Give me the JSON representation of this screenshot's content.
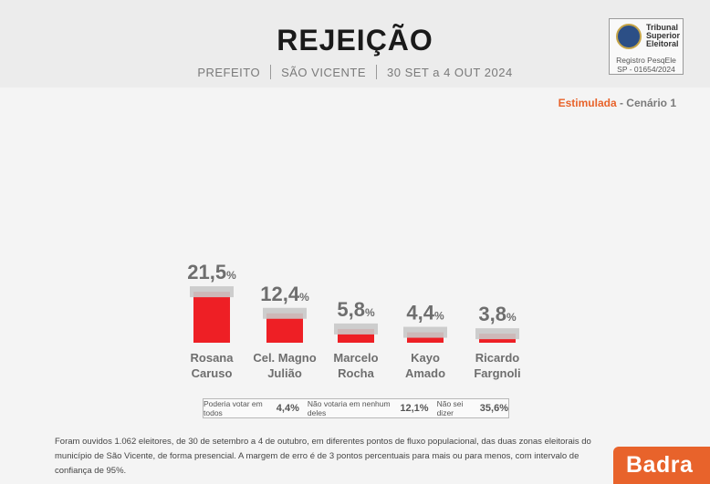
{
  "header": {
    "title": "REJEIÇÃO",
    "office": "PREFEITO",
    "city": "SÃO VICENTE",
    "period": "30 SET a 4 OUT 2024"
  },
  "registration": {
    "tribunal_line1": "Tribunal",
    "tribunal_line2": "Superior",
    "tribunal_line3": "Eleitoral",
    "reg_line1": "Registro PesqEle",
    "reg_line2": "SP - 01654/2024"
  },
  "scenario": {
    "type": "Estimulada",
    "rest": " - Cenário 1"
  },
  "chart_data": {
    "type": "bar",
    "categories": [
      [
        "Rosana",
        "Caruso"
      ],
      [
        "Cel. Magno",
        "Julião"
      ],
      [
        "Marcelo",
        "Rocha"
      ],
      [
        "Kayo",
        "Amado"
      ],
      [
        "Ricardo",
        "Fargnoli"
      ]
    ],
    "values": [
      21.5,
      12.4,
      5.8,
      4.4,
      3.8
    ],
    "labels": [
      "21,5",
      "12,4",
      "5,8",
      "4,4",
      "3,8"
    ],
    "unit": "%",
    "bar_color": "#ee1f25",
    "cap_color": "#c9c9c9"
  },
  "legend": {
    "item1_label": "Poderia votar em todos",
    "item1_value": "4,4%",
    "item2_label": "Não votaria em nenhum deles",
    "item2_value": "12,1%",
    "item3_label": "Não sei dizer",
    "item3_value": "35,6%"
  },
  "footnote": "Foram ouvidos 1.062 eleitores, de 30 de setembro a 4 de outubro, em diferentes pontos de fluxo populacional, das duas zonas eleitorais do município de São Vicente, de forma presencial. A margem de erro é de 3 pontos percentuais para mais ou para menos, com intervalo de confiança de 95%.",
  "brand": "Badra"
}
